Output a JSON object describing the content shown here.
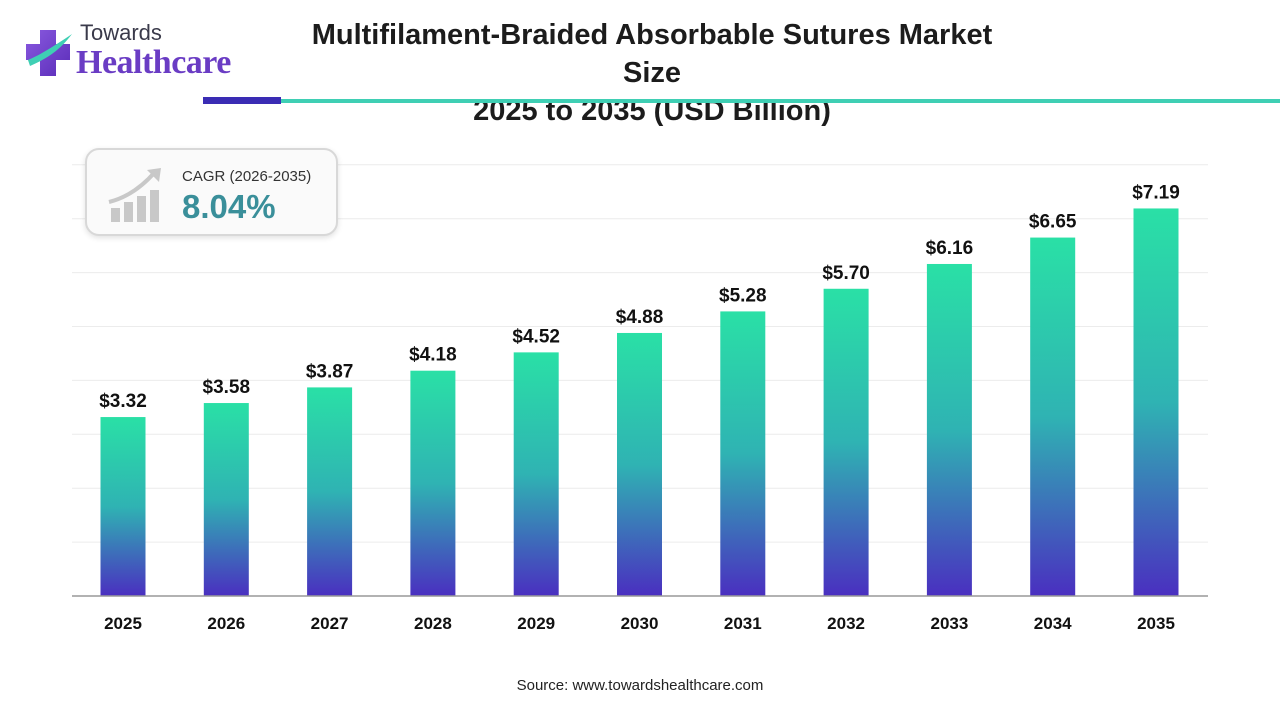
{
  "brand": {
    "line1": "Towards",
    "line2": "Healthcare"
  },
  "title": {
    "line1": "Multifilament-Braided Absorbable Sutures Market Size",
    "line2": "2025 to 2035 (USD Billion)"
  },
  "cagr": {
    "label": "CAGR (2026-2035)",
    "value": "8.04%"
  },
  "source": "Source: www.towardshealthcare.com",
  "colors": {
    "bar_top": "#2ae0a6",
    "bar_mid": "#2fb3b3",
    "bar_bottom": "#4a2fc0",
    "brand_purple": "#6a3cc4",
    "accent_teal": "#3fcfb4",
    "cagr_teal": "#3a8f9a"
  },
  "chart_data": {
    "type": "bar",
    "categories": [
      "2025",
      "2026",
      "2027",
      "2028",
      "2029",
      "2030",
      "2031",
      "2032",
      "2033",
      "2034",
      "2035"
    ],
    "values": [
      3.32,
      3.58,
      3.87,
      4.18,
      4.52,
      4.88,
      5.28,
      5.7,
      6.16,
      6.65,
      7.19
    ],
    "data_labels": [
      "$3.32",
      "$3.58",
      "$3.87",
      "$4.18",
      "$4.52",
      "$4.88",
      "$5.28",
      "$5.70",
      "$6.16",
      "$6.65",
      "$7.19"
    ],
    "title": "Multifilament-Braided Absorbable Sutures Market Size 2025 to 2035 (USD Billion)",
    "xlabel": "",
    "ylabel": "",
    "ylim": [
      0,
      8
    ],
    "grid": true,
    "y_axis_labels_shown": false
  }
}
